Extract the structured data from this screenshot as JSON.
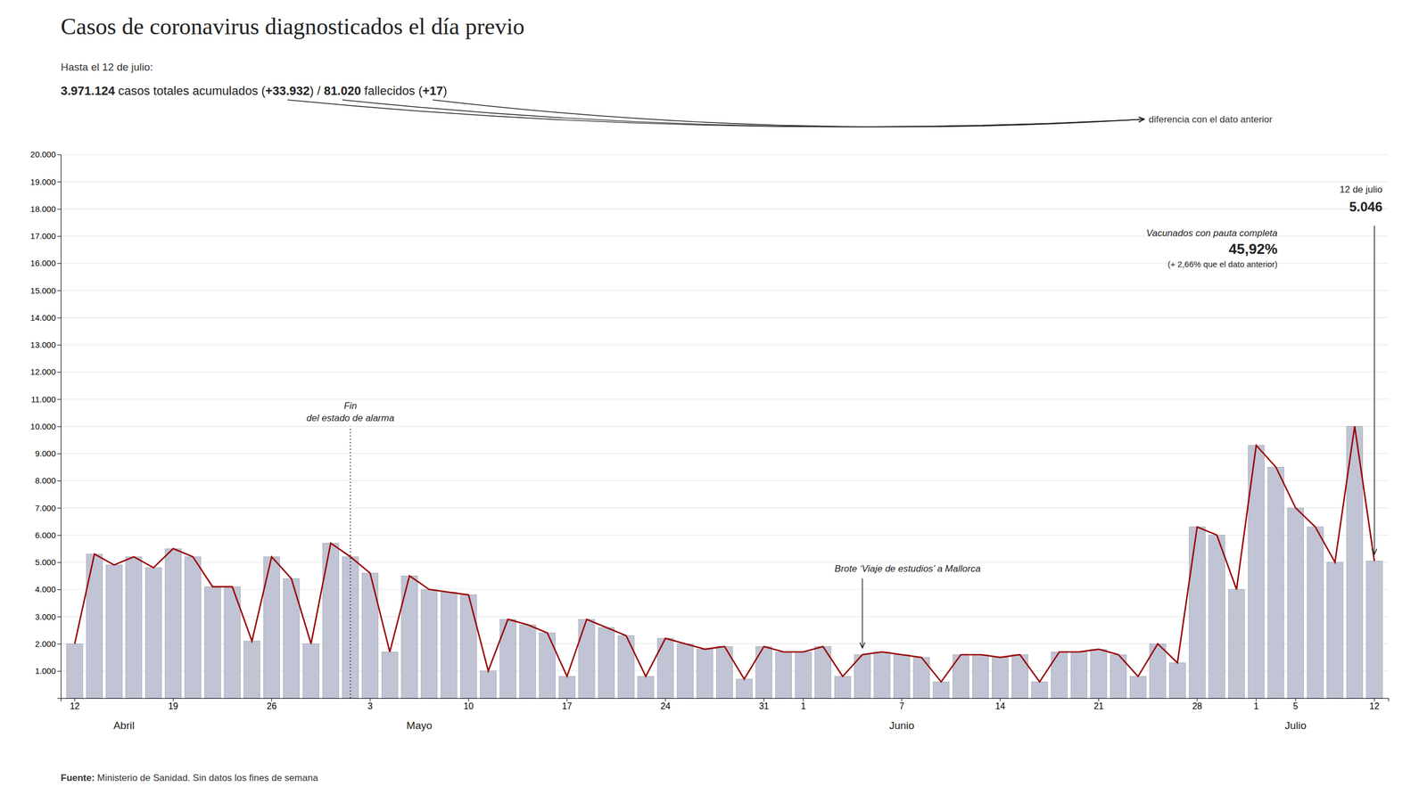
{
  "chart_data": {
    "type": "bar",
    "title": "Casos de coronavirus diagnosticados el día previo",
    "subtitle": "Hasta el 12 de julio:",
    "summary": [
      "3.971.124",
      " casos totales acumulados (",
      "+33.932",
      ") / ",
      "81.020",
      " fallecidos (",
      "+17",
      ")"
    ],
    "summary_note": "diferencia con el dato anterior",
    "source": [
      "Fuente:",
      " Ministerio de Sanidad. Sin datos los fines de semana"
    ],
    "categories": [
      "12",
      null,
      null,
      null,
      null,
      "19",
      null,
      null,
      null,
      null,
      "26",
      null,
      null,
      null,
      null,
      "3",
      null,
      null,
      null,
      null,
      "10",
      null,
      null,
      null,
      null,
      "17",
      null,
      null,
      null,
      null,
      "24",
      null,
      null,
      null,
      null,
      "31",
      null,
      "1",
      null,
      null,
      null,
      null,
      "7",
      null,
      null,
      null,
      null,
      "14",
      null,
      null,
      null,
      null,
      "21",
      null,
      null,
      null,
      null,
      "28",
      null,
      null,
      "1",
      null,
      "5",
      null,
      null,
      null,
      "12"
    ],
    "series": [
      {
        "type": "bar",
        "color": "#c0c4d4",
        "values": [
          2000,
          5300,
          4900,
          5200,
          4800,
          5500,
          5200,
          4100,
          4100,
          2100,
          5200,
          4400,
          2000,
          5700,
          5200,
          4600,
          1700,
          4500,
          4000,
          3900,
          3800,
          1000,
          2900,
          2700,
          2400,
          800,
          2900,
          2600,
          2300,
          800,
          2200,
          2000,
          1800,
          1900,
          700,
          1900,
          1700,
          1700,
          1900,
          800,
          1600,
          1700,
          1600,
          1500,
          600,
          1600,
          1600,
          1500,
          1600,
          600,
          1700,
          1700,
          1800,
          1600,
          800,
          2000,
          1300,
          6300,
          6000,
          4000,
          9300,
          8500,
          7000,
          6300,
          5000,
          10000,
          5046
        ]
      },
      {
        "type": "line",
        "color": "#990000",
        "values": [
          2000,
          5300,
          4900,
          5200,
          4800,
          5500,
          5200,
          4100,
          4100,
          2100,
          5200,
          4400,
          2000,
          5700,
          5200,
          4600,
          1700,
          4500,
          4000,
          3900,
          3800,
          1000,
          2900,
          2700,
          2400,
          800,
          2900,
          2600,
          2300,
          800,
          2200,
          2000,
          1800,
          1900,
          700,
          1900,
          1700,
          1700,
          1900,
          800,
          1600,
          1700,
          1600,
          1500,
          600,
          1600,
          1600,
          1500,
          1600,
          600,
          1700,
          1700,
          1800,
          1600,
          800,
          2000,
          1300,
          6300,
          6000,
          4000,
          9300,
          8500,
          7000,
          6300,
          5000,
          10000,
          5046
        ]
      }
    ],
    "ylim": [
      0,
      20000
    ],
    "yticks": [
      {
        "value": 1000,
        "label": "1.000"
      },
      {
        "value": 2000,
        "label": "2.000"
      },
      {
        "value": 3000,
        "label": "3.000"
      },
      {
        "value": 4000,
        "label": "4.000"
      },
      {
        "value": 5000,
        "label": "5.000"
      },
      {
        "value": 6000,
        "label": "6.000"
      },
      {
        "value": 7000,
        "label": "7.000"
      },
      {
        "value": 8000,
        "label": "8.000"
      },
      {
        "value": 9000,
        "label": "9.000"
      },
      {
        "value": 10000,
        "label": "10.000"
      },
      {
        "value": 11000,
        "label": "11.000"
      },
      {
        "value": 12000,
        "label": "12.000"
      },
      {
        "value": 13000,
        "label": "13.000"
      },
      {
        "value": 14000,
        "label": "14.000"
      },
      {
        "value": 15000,
        "label": "15.000"
      },
      {
        "value": 16000,
        "label": "16.000"
      },
      {
        "value": 17000,
        "label": "17.000"
      },
      {
        "value": 18000,
        "label": "18.000"
      },
      {
        "value": 19000,
        "label": "19.000"
      },
      {
        "value": 20000,
        "label": "20.000"
      }
    ],
    "grid": true,
    "months": [
      {
        "label": "Abril",
        "x": 2.5
      },
      {
        "label": "Mayo",
        "x": 17.5
      },
      {
        "label": "Junio",
        "x": 42
      },
      {
        "label": "Julio",
        "x": 62
      }
    ],
    "annotations": [
      {
        "x": 14,
        "text": [
          "Fin",
          "del estado de alarma"
        ],
        "line_style": "dotted"
      },
      {
        "x": 40,
        "text": [
          "Brote ‘Viaje de estudios’ a Mallorca"
        ],
        "arrow": true
      },
      {
        "x": 66,
        "text": [
          "12 de julio",
          "5.046"
        ],
        "arrow": true
      },
      {
        "text": [
          "Vacunados con pauta completa",
          "45,92%",
          "(+ 2,66% que el dato anterior)"
        ]
      }
    ]
  }
}
